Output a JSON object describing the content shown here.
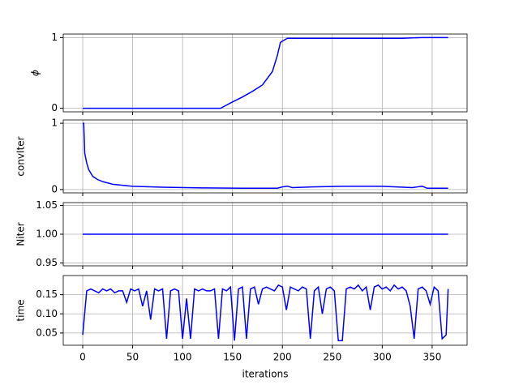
{
  "chart_data": [
    {
      "type": "line",
      "ylabel": "ϕ",
      "color": "#0000ff",
      "grid": true,
      "x": [
        0,
        40,
        80,
        120,
        138,
        150,
        160,
        170,
        180,
        190,
        195,
        198,
        200,
        205,
        240,
        280,
        320,
        340,
        366
      ],
      "values": [
        0,
        0,
        0,
        0,
        0,
        0.09,
        0.16,
        0.24,
        0.33,
        0.52,
        0.75,
        0.93,
        0.95,
        0.99,
        0.99,
        0.99,
        0.99,
        1.0,
        1.0
      ],
      "xlim": [
        -19.5,
        385
      ],
      "xticks": [
        0,
        50,
        100,
        150,
        200,
        250,
        300,
        350
      ],
      "ylim": [
        -0.05,
        1.05
      ],
      "yticks": [
        0,
        1
      ]
    },
    {
      "type": "line",
      "ylabel": "convIter",
      "color": "#0000ff",
      "grid": true,
      "x": [
        0,
        1,
        2,
        4,
        6,
        10,
        15,
        20,
        30,
        50,
        80,
        120,
        160,
        195,
        200,
        205,
        210,
        230,
        260,
        300,
        330,
        340,
        345,
        366
      ],
      "values": [
        1.0,
        1.0,
        0.55,
        0.4,
        0.3,
        0.2,
        0.15,
        0.12,
        0.08,
        0.05,
        0.035,
        0.025,
        0.02,
        0.02,
        0.04,
        0.05,
        0.03,
        0.04,
        0.05,
        0.05,
        0.03,
        0.05,
        0.02,
        0.02
      ],
      "xlim": [
        -19.5,
        385
      ],
      "xticks": [
        0,
        50,
        100,
        150,
        200,
        250,
        300,
        350
      ],
      "ylim": [
        -0.05,
        1.05
      ],
      "yticks": [
        0,
        1
      ]
    },
    {
      "type": "line",
      "ylabel": "Niter",
      "color": "#0000ff",
      "grid": true,
      "x": [
        0,
        366
      ],
      "values": [
        1,
        1
      ],
      "xlim": [
        -19.5,
        385
      ],
      "xticks": [
        0,
        50,
        100,
        150,
        200,
        250,
        300,
        350
      ],
      "ylim": [
        0.945,
        1.055
      ],
      "yticks": [
        0.95,
        {
          "value": 1,
          "label": "1.00"
        },
        1.05
      ]
    },
    {
      "type": "line",
      "ylabel": "time",
      "xlabel": "iterations",
      "color": "#0000ff",
      "grid": true,
      "x": [
        0,
        4,
        8,
        12,
        16,
        20,
        24,
        28,
        32,
        36,
        40,
        44,
        48,
        52,
        56,
        60,
        64,
        68,
        72,
        76,
        80,
        84,
        88,
        92,
        96,
        100,
        104,
        108,
        112,
        116,
        120,
        124,
        128,
        132,
        136,
        140,
        144,
        148,
        152,
        156,
        160,
        164,
        168,
        172,
        176,
        180,
        184,
        188,
        192,
        196,
        200,
        204,
        208,
        212,
        216,
        220,
        224,
        228,
        232,
        236,
        240,
        244,
        248,
        252,
        256,
        260,
        264,
        268,
        272,
        276,
        280,
        284,
        288,
        292,
        296,
        300,
        304,
        308,
        312,
        316,
        320,
        324,
        328,
        332,
        336,
        340,
        344,
        348,
        352,
        356,
        360,
        364,
        366
      ],
      "values": [
        0.045,
        0.16,
        0.165,
        0.16,
        0.155,
        0.165,
        0.16,
        0.165,
        0.155,
        0.16,
        0.16,
        0.13,
        0.165,
        0.16,
        0.165,
        0.12,
        0.16,
        0.085,
        0.165,
        0.16,
        0.165,
        0.035,
        0.16,
        0.165,
        0.16,
        0.035,
        0.14,
        0.035,
        0.165,
        0.16,
        0.165,
        0.16,
        0.16,
        0.165,
        0.035,
        0.165,
        0.16,
        0.17,
        0.03,
        0.165,
        0.17,
        0.035,
        0.165,
        0.17,
        0.125,
        0.165,
        0.17,
        0.165,
        0.16,
        0.175,
        0.17,
        0.11,
        0.17,
        0.165,
        0.16,
        0.17,
        0.165,
        0.035,
        0.16,
        0.17,
        0.1,
        0.165,
        0.17,
        0.16,
        0.03,
        0.03,
        0.165,
        0.17,
        0.165,
        0.175,
        0.16,
        0.17,
        0.11,
        0.17,
        0.175,
        0.165,
        0.17,
        0.16,
        0.175,
        0.165,
        0.17,
        0.16,
        0.12,
        0.035,
        0.165,
        0.17,
        0.16,
        0.125,
        0.17,
        0.16,
        0.035,
        0.045,
        0.165
      ],
      "xlim": [
        -19.5,
        385
      ],
      "xticks": [
        0,
        50,
        100,
        150,
        200,
        250,
        300,
        350
      ],
      "ylim": [
        0.018,
        0.2
      ],
      "yticks": [
        0.05,
        {
          "value": 0.1,
          "label": "0.10"
        },
        0.15
      ]
    }
  ]
}
